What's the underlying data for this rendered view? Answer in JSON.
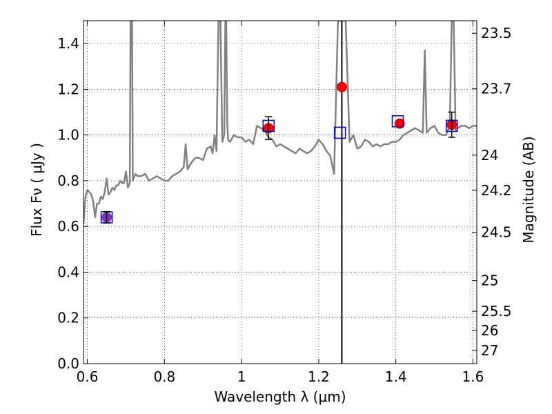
{
  "chart_data": {
    "type": "scatter",
    "xlabel": "Wavelength  λ (μm)",
    "ylabel": "Flux  Fν  ( μJy )",
    "y2label": "Magnitude (AB)",
    "xlim": [
      0.59,
      1.61
    ],
    "ylim": [
      0.0,
      1.5
    ],
    "grid": true,
    "x_ticks": [
      0.6,
      0.8,
      1.0,
      1.2,
      1.4,
      1.6
    ],
    "x_tick_labels": [
      "0.6",
      "0.8",
      "1",
      "1.2",
      "1.4",
      "1.6"
    ],
    "y_ticks": [
      0.0,
      0.2,
      0.4,
      0.6,
      0.8,
      1.0,
      1.2,
      1.4
    ],
    "y_tick_labels": [
      "0.0",
      "0.2",
      "0.4",
      "0.6",
      "0.8",
      "1.0",
      "1.2",
      "1.4"
    ],
    "y2_ticks": [
      {
        "label": "23.5",
        "flux": 1.445
      },
      {
        "label": "23.7",
        "flux": 1.202
      },
      {
        "label": "24",
        "flux": 0.912
      },
      {
        "label": "24.2",
        "flux": 0.758
      },
      {
        "label": "24.5",
        "flux": 0.575
      },
      {
        "label": "25",
        "flux": 0.363
      },
      {
        "label": "25.5",
        "flux": 0.229
      },
      {
        "label": "26",
        "flux": 0.145
      },
      {
        "label": "27",
        "flux": 0.058
      }
    ],
    "vline_x": 1.26,
    "colors": {
      "model": "#808080",
      "observed": "#ee0000",
      "synthetic": "#0000cc",
      "purple": "#8833bb",
      "errorbar": "#000000",
      "vline": "#000000"
    },
    "series": [
      {
        "style": "line",
        "x": [
          0.59,
          0.595,
          0.6,
          0.605,
          0.61,
          0.615,
          0.62,
          0.625,
          0.63,
          0.635,
          0.64,
          0.645,
          0.65,
          0.655,
          0.66,
          0.665,
          0.67,
          0.675,
          0.68,
          0.685,
          0.69,
          0.695,
          0.7,
          0.705,
          0.71,
          0.712,
          0.714,
          0.716,
          0.718,
          0.72,
          0.725,
          0.73,
          0.74,
          0.75,
          0.76,
          0.77,
          0.78,
          0.79,
          0.8,
          0.81,
          0.82,
          0.83,
          0.84,
          0.85,
          0.855,
          0.86,
          0.87,
          0.88,
          0.89,
          0.9,
          0.91,
          0.92,
          0.925,
          0.93,
          0.935,
          0.94,
          0.945,
          0.95,
          0.955,
          0.958,
          0.96,
          0.963,
          0.965,
          0.97,
          0.98,
          0.99,
          1.0,
          1.01,
          1.02,
          1.03,
          1.04,
          1.05,
          1.06,
          1.07,
          1.08,
          1.09,
          1.1,
          1.11,
          1.12,
          1.13,
          1.14,
          1.15,
          1.16,
          1.17,
          1.18,
          1.19,
          1.2,
          1.21,
          1.22,
          1.23,
          1.24,
          1.25,
          1.26,
          1.27,
          1.28,
          1.29,
          1.3,
          1.31,
          1.32,
          1.33,
          1.34,
          1.35,
          1.36,
          1.37,
          1.38,
          1.39,
          1.4,
          1.41,
          1.42,
          1.43,
          1.44,
          1.45,
          1.46,
          1.47,
          1.475,
          1.48,
          1.485,
          1.49,
          1.5,
          1.51,
          1.52,
          1.53,
          1.535,
          1.54,
          1.545,
          1.55,
          1.555,
          1.56,
          1.57,
          1.58,
          1.59,
          1.6,
          1.61
        ],
        "y": [
          0.61,
          0.73,
          0.76,
          0.75,
          0.74,
          0.71,
          0.64,
          0.7,
          0.7,
          0.73,
          0.72,
          0.75,
          0.81,
          0.74,
          0.75,
          0.77,
          0.76,
          0.78,
          0.78,
          0.8,
          0.79,
          0.79,
          0.84,
          0.77,
          0.79,
          1.5,
          1.5,
          1.5,
          0.8,
          0.81,
          0.83,
          0.82,
          0.82,
          0.83,
          0.8,
          0.81,
          0.82,
          0.81,
          0.8,
          0.8,
          0.82,
          0.83,
          0.84,
          0.86,
          0.96,
          0.85,
          0.88,
          0.9,
          0.9,
          0.89,
          0.94,
          0.95,
          0.92,
          1.0,
          0.93,
          1.5,
          1.5,
          0.97,
          1.0,
          1.5,
          1.5,
          1.05,
          0.98,
          0.97,
          1.0,
          0.99,
          0.99,
          0.97,
          0.98,
          0.96,
          1.04,
          1.03,
          1.02,
          0.99,
          0.98,
          0.95,
          0.96,
          0.95,
          0.94,
          0.93,
          0.92,
          0.94,
          0.93,
          0.92,
          0.93,
          0.95,
          0.98,
          0.96,
          0.93,
          0.91,
          0.83,
          1.5,
          1.5,
          1.5,
          0.97,
          1.0,
          0.94,
          0.95,
          0.98,
          0.97,
          0.95,
          0.96,
          0.95,
          0.96,
          0.96,
          0.97,
          0.97,
          0.98,
          1.0,
          1.01,
          1.02,
          1.03,
          1.02,
          1.01,
          1.37,
          1.01,
          1.02,
          1.03,
          1.04,
          1.01,
          1.0,
          1.0,
          1.02,
          1.05,
          1.5,
          1.5,
          1.02,
          1.03,
          1.04,
          1.04,
          1.03,
          1.04,
          1.04
        ]
      },
      {
        "style": "points",
        "x": [
          0.65,
          1.07,
          1.26,
          1.41,
          1.545
        ],
        "y": [
          0.64,
          1.03,
          1.21,
          1.05,
          1.045
        ]
      },
      {
        "style": "open-squares",
        "x": [
          0.65,
          1.07,
          1.255,
          1.405,
          1.545
        ],
        "y": [
          0.64,
          1.04,
          1.01,
          1.06,
          1.04
        ]
      },
      {
        "style": "errorbars",
        "x": [
          0.65,
          1.07,
          1.545
        ],
        "y": [
          0.64,
          1.03,
          1.045
        ],
        "yerr": [
          0.025,
          0.05,
          0.055
        ]
      }
    ]
  }
}
